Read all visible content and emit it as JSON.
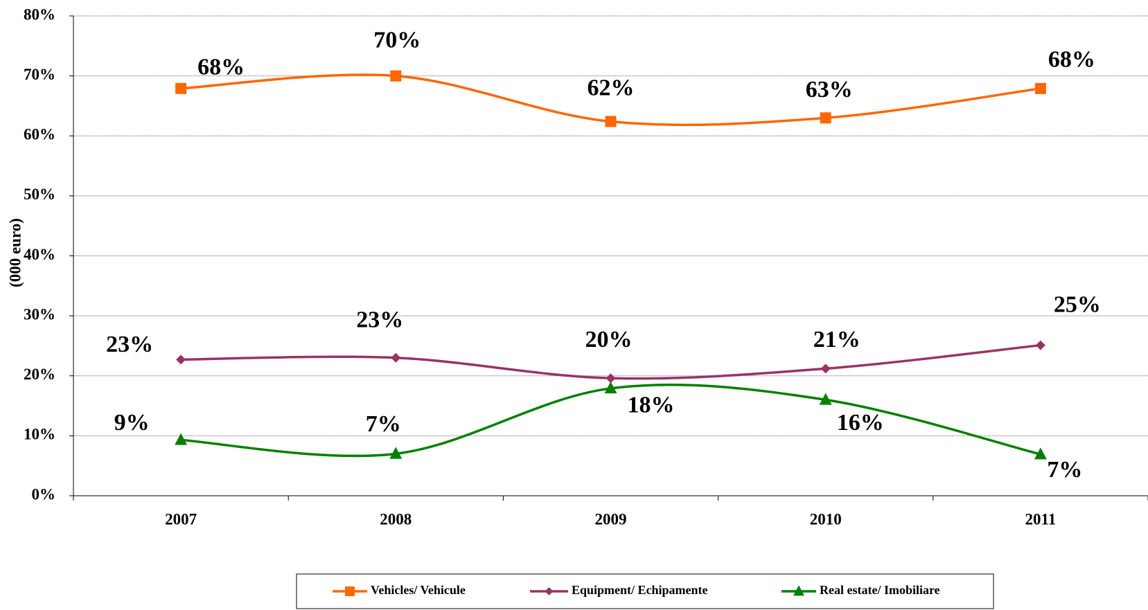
{
  "chart_data": {
    "type": "line",
    "y_label": "(000 euro)",
    "categories": [
      "2007",
      "2008",
      "2009",
      "2010",
      "2011"
    ],
    "series": [
      {
        "name": "Vehicles/ Vehicule",
        "color": "#ff6600",
        "marker": "square",
        "values": [
          67.9,
          70,
          62.4,
          63,
          67.9
        ],
        "value_labels": [
          "68%",
          "70%",
          "62%",
          "63%",
          "68%"
        ]
      },
      {
        "name": "Equipment/ Echipamente",
        "color": "#993366",
        "marker": "diamond",
        "values": [
          22.7,
          23,
          19.6,
          21.2,
          25.1
        ],
        "value_labels": [
          "23%",
          "23%",
          "20%",
          "21%",
          "25%"
        ]
      },
      {
        "name": "Real estate/ Imobiliare",
        "color": "#008000",
        "marker": "triangle",
        "values": [
          9.3,
          7,
          17.9,
          16,
          6.9
        ],
        "value_labels": [
          "9%",
          "7%",
          "18%",
          "16%",
          "7%"
        ]
      }
    ],
    "ylim": [
      0,
      80
    ],
    "yticks": [
      {
        "value": 0,
        "label": "0%"
      },
      {
        "value": 10,
        "label": "10%"
      },
      {
        "value": 20,
        "label": "20%"
      },
      {
        "value": 30,
        "label": "30%"
      },
      {
        "value": 40,
        "label": "40%"
      },
      {
        "value": 50,
        "label": "50%"
      },
      {
        "value": 60,
        "label": "60%"
      },
      {
        "value": 70,
        "label": "70%"
      },
      {
        "value": 80,
        "label": "80%"
      }
    ],
    "grid": true,
    "legend": "bottom"
  }
}
